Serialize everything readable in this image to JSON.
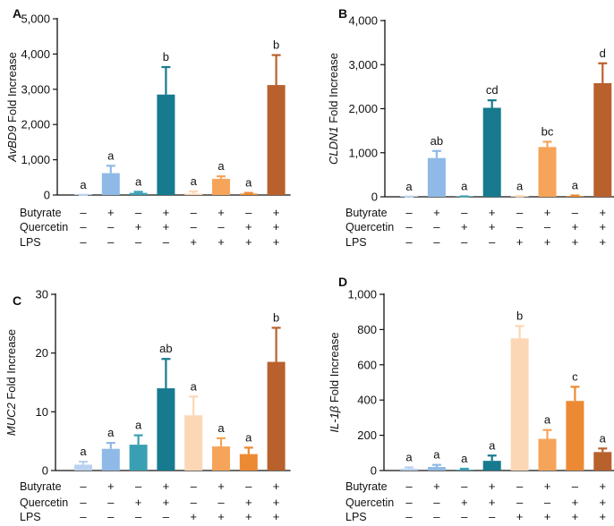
{
  "figure": {
    "conditions": [
      "Butyrate",
      "Quercetin",
      "LPS"
    ],
    "plus": "+",
    "minus": "–"
  },
  "chart_data": [
    {
      "panel": "A",
      "type": "bar",
      "ylabel_gene": "AvBD9",
      "ylabel_suffix": " Fold Increase",
      "ylim": [
        0,
        5000
      ],
      "yticks": [
        0,
        1000,
        2000,
        3000,
        4000,
        5000
      ],
      "ytick_labels": [
        "0",
        "1,000",
        "2,000",
        "3,000",
        "4,000",
        "5,000"
      ],
      "values": [
        1,
        620,
        60,
        2850,
        40,
        460,
        40,
        3120
      ],
      "errors": [
        5,
        210,
        30,
        780,
        60,
        70,
        20,
        850
      ],
      "letters": [
        "a",
        "a",
        "a",
        "b",
        "a",
        "a",
        "a",
        "b"
      ],
      "colors": [
        "#b9d2ef",
        "#8fb9e6",
        "#3a9fb2",
        "#177a8e",
        "#fbd7b5",
        "#f6a45a",
        "#ec8a34",
        "#b8612c"
      ],
      "treatments": {
        "Butyrate": [
          "-",
          "+",
          "-",
          "+",
          "-",
          "+",
          "-",
          "+"
        ],
        "Quercetin": [
          "-",
          "-",
          "+",
          "+",
          "-",
          "-",
          "+",
          "+"
        ],
        "LPS": [
          "-",
          "-",
          "-",
          "-",
          "+",
          "+",
          "+",
          "+"
        ]
      }
    },
    {
      "panel": "B",
      "type": "bar",
      "ylabel_gene": "CLDN1",
      "ylabel_suffix": " Fold Increase",
      "ylim": [
        0,
        4000
      ],
      "yticks": [
        0,
        1000,
        2000,
        3000,
        4000
      ],
      "ytick_labels": [
        "0",
        "1,000",
        "2,000",
        "3,000",
        "4,000"
      ],
      "values": [
        2,
        880,
        5,
        2020,
        10,
        1130,
        20,
        2580
      ],
      "errors": [
        2,
        160,
        5,
        170,
        5,
        120,
        10,
        450
      ],
      "letters": [
        "a",
        "ab",
        "a",
        "cd",
        "a",
        "bc",
        "a",
        "d"
      ],
      "colors": [
        "#b9d2ef",
        "#8fb9e6",
        "#3a9fb2",
        "#177a8e",
        "#fbd7b5",
        "#f6a45a",
        "#ec8a34",
        "#b8612c"
      ],
      "treatments": {
        "Butyrate": [
          "-",
          "+",
          "-",
          "+",
          "-",
          "+",
          "-",
          "+"
        ],
        "Quercetin": [
          "-",
          "-",
          "+",
          "+",
          "-",
          "-",
          "+",
          "+"
        ],
        "LPS": [
          "-",
          "-",
          "-",
          "-",
          "+",
          "+",
          "+",
          "+"
        ]
      }
    },
    {
      "panel": "C",
      "type": "bar",
      "ylabel_gene": "MUC2",
      "ylabel_suffix": " Fold Increase",
      "ylim": [
        0,
        30
      ],
      "yticks": [
        0,
        10,
        20,
        30
      ],
      "ytick_labels": [
        "0",
        "10",
        "20",
        "30"
      ],
      "values": [
        1,
        3.7,
        4.4,
        14,
        9.4,
        4.1,
        2.8,
        18.5
      ],
      "errors": [
        0.5,
        1.0,
        1.6,
        5.0,
        3.2,
        1.4,
        1.1,
        5.8
      ],
      "letters": [
        "a",
        "a",
        "a",
        "ab",
        "a",
        "a",
        "a",
        "b"
      ],
      "colors": [
        "#b9d2ef",
        "#8fb9e6",
        "#3a9fb2",
        "#177a8e",
        "#fbd7b5",
        "#f6a45a",
        "#ec8a34",
        "#b8612c"
      ],
      "treatments": {
        "Butyrate": [
          "-",
          "+",
          "-",
          "+",
          "-",
          "+",
          "-",
          "+"
        ],
        "Quercetin": [
          "-",
          "-",
          "+",
          "+",
          "-",
          "-",
          "+",
          "+"
        ],
        "LPS": [
          "-",
          "-",
          "-",
          "-",
          "+",
          "+",
          "+",
          "+"
        ]
      }
    },
    {
      "panel": "D",
      "type": "bar",
      "ylabel_gene": "IL-1β",
      "ylabel_suffix": " Fold Increase",
      "ylim": [
        0,
        1000
      ],
      "yticks": [
        0,
        200,
        400,
        600,
        800,
        1000
      ],
      "ytick_labels": [
        "0",
        "200",
        "400",
        "600",
        "800",
        "1,000"
      ],
      "values": [
        10,
        20,
        5,
        55,
        750,
        180,
        395,
        105
      ],
      "errors": [
        8,
        12,
        5,
        30,
        70,
        50,
        80,
        20
      ],
      "letters": [
        "a",
        "a",
        "a",
        "a",
        "b",
        "a",
        "c",
        "a"
      ],
      "colors": [
        "#b9d2ef",
        "#8fb9e6",
        "#3a9fb2",
        "#177a8e",
        "#fbd7b5",
        "#f6a45a",
        "#ec8a34",
        "#b8612c"
      ],
      "treatments": {
        "Butyrate": [
          "-",
          "+",
          "-",
          "+",
          "-",
          "+",
          "-",
          "+"
        ],
        "Quercetin": [
          "-",
          "-",
          "+",
          "+",
          "-",
          "-",
          "+",
          "+"
        ],
        "LPS": [
          "-",
          "-",
          "-",
          "-",
          "+",
          "+",
          "+",
          "+"
        ]
      }
    }
  ]
}
